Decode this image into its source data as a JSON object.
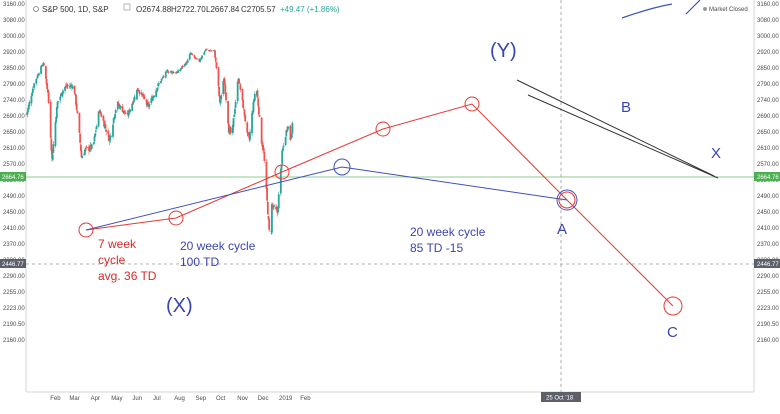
{
  "header": {
    "symbol": "S&P 500, 1D, S&P",
    "open": "O2674.88",
    "high": "H2722.70",
    "low": "L2667.84",
    "close": "C2705.57",
    "change": "+49.47 (+1.86%)",
    "market_status": "Market Closed"
  },
  "colors": {
    "up": "#26a69a",
    "down": "#ef5350",
    "cycle_red": "#e53935",
    "cycle_blue": "#3f51b5",
    "trend": "#333333",
    "last_price_bg": "#4caf50",
    "crosshair_bg": "#5d606b"
  },
  "chart_data": {
    "type": "candlestick",
    "y_ticks": [
      "3160.00",
      "3080.00",
      "3000.00",
      "2920.00",
      "2850.00",
      "2790.00",
      "2740.00",
      "2690.00",
      "2650.00",
      "2610.00",
      "2570.00",
      "2530.00",
      "2490.00",
      "2450.00",
      "2410.00",
      "2370.00",
      "2330.00",
      "2290.00",
      "2255.00",
      "2223.00",
      "2190.50",
      "2160.00"
    ],
    "x_ticks": [
      "Feb",
      "Mar",
      "Apr",
      "May",
      "Jun",
      "Jul",
      "Aug",
      "Sep",
      "Oct",
      "Nov",
      "Dec",
      "2019",
      "Feb"
    ],
    "crosshair_date": "25 Oct '18",
    "last_price_label": "2664.76",
    "crosshair_price_label": "2446.77",
    "anchors": [
      {
        "date": "2018-01-02",
        "close": 2695
      },
      {
        "date": "2018-01-12",
        "close": 2786
      },
      {
        "date": "2018-01-26",
        "close": 2872
      },
      {
        "date": "2018-02-02",
        "close": 2762
      },
      {
        "date": "2018-02-08",
        "close": 2581
      },
      {
        "date": "2018-02-16",
        "close": 2732
      },
      {
        "date": "2018-02-26",
        "close": 2780
      },
      {
        "date": "2018-03-09",
        "close": 2786
      },
      {
        "date": "2018-03-13",
        "close": 2765
      },
      {
        "date": "2018-03-23",
        "close": 2588
      },
      {
        "date": "2018-03-28",
        "close": 2605
      },
      {
        "date": "2018-04-09",
        "close": 2613
      },
      {
        "date": "2018-04-18",
        "close": 2708
      },
      {
        "date": "2018-05-03",
        "close": 2630
      },
      {
        "date": "2018-05-14",
        "close": 2730
      },
      {
        "date": "2018-05-29",
        "close": 2690
      },
      {
        "date": "2018-06-13",
        "close": 2775
      },
      {
        "date": "2018-06-21",
        "close": 2750
      },
      {
        "date": "2018-06-28",
        "close": 2718
      },
      {
        "date": "2018-07-16",
        "close": 2800
      },
      {
        "date": "2018-07-26",
        "close": 2838
      },
      {
        "date": "2018-08-10",
        "close": 2833
      },
      {
        "date": "2018-08-24",
        "close": 2875
      },
      {
        "date": "2018-08-29",
        "close": 2914
      },
      {
        "date": "2018-09-10",
        "close": 2877
      },
      {
        "date": "2018-09-20",
        "close": 2930
      },
      {
        "date": "2018-10-03",
        "close": 2925
      },
      {
        "date": "2018-10-11",
        "close": 2728
      },
      {
        "date": "2018-10-17",
        "close": 2810
      },
      {
        "date": "2018-10-24",
        "close": 2657
      },
      {
        "date": "2018-10-29",
        "close": 2641
      },
      {
        "date": "2018-11-07",
        "close": 2813
      },
      {
        "date": "2018-11-20",
        "close": 2641
      },
      {
        "date": "2018-11-23",
        "close": 2633
      },
      {
        "date": "2018-12-03",
        "close": 2790
      },
      {
        "date": "2018-12-10",
        "close": 2637
      },
      {
        "date": "2018-12-14",
        "close": 2600
      },
      {
        "date": "2018-12-24",
        "close": 2351
      },
      {
        "date": "2018-12-26",
        "close": 2467
      },
      {
        "date": "2019-01-03",
        "close": 2448
      },
      {
        "date": "2019-01-10",
        "close": 2596
      },
      {
        "date": "2019-01-18",
        "close": 2670
      },
      {
        "date": "2019-01-22",
        "close": 2633
      },
      {
        "date": "2019-01-25",
        "close": 2665
      }
    ]
  },
  "annotations": {
    "seven_week": [
      "7 week",
      "cycle",
      "avg. 36 TD"
    ],
    "twenty_week_a": [
      "20 week cycle",
      "100 TD"
    ],
    "twenty_week_b": [
      "20 week cycle",
      "85 TD -15"
    ],
    "wave_x_left": "(X)",
    "wave_y": "(Y)",
    "wave_a": "A",
    "wave_b": "B",
    "wave_c": "C",
    "wave_x_right": "X"
  }
}
